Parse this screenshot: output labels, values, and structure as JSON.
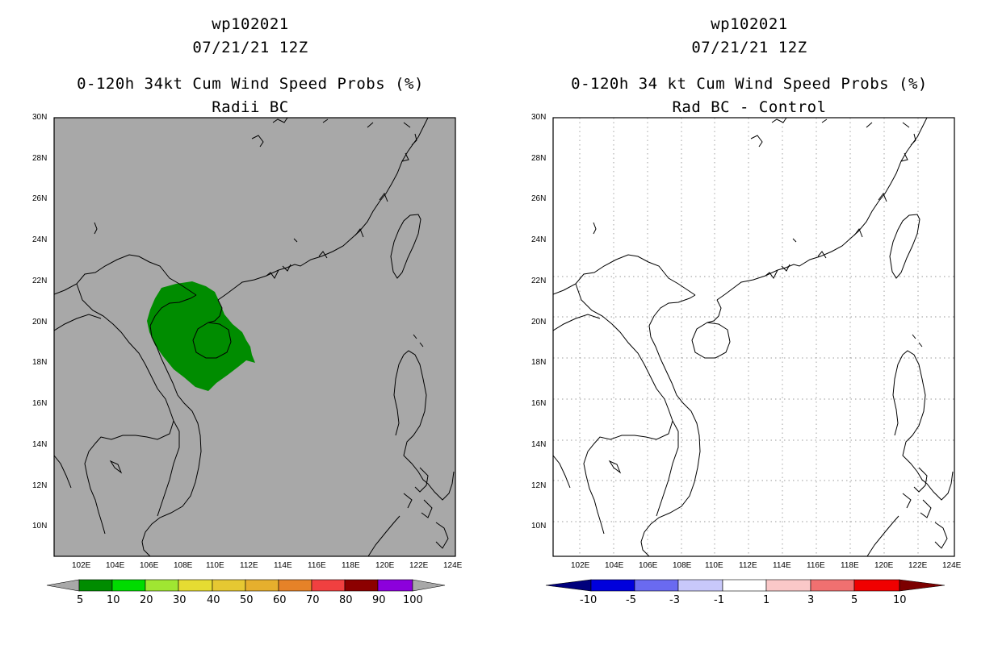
{
  "left_panel": {
    "title_line1": "wp102021",
    "title_line2": "07/21/21 12Z",
    "title_line3": "0-120h 34kt Cum Wind Speed Probs (%)",
    "title_line4": "Radii BC",
    "background_color": "#a8a8a8",
    "colorbar": {
      "labels": [
        "5",
        "10",
        "20",
        "30",
        "40",
        "50",
        "60",
        "70",
        "80",
        "90",
        "100"
      ],
      "colors": [
        "#008c00",
        "#00dc00",
        "#a0e632",
        "#e6dc32",
        "#e6c832",
        "#e6af2d",
        "#e68228",
        "#f04040",
        "#8c0000",
        "#8c00dc"
      ]
    }
  },
  "right_panel": {
    "title_line1": "wp102021",
    "title_line2": "07/21/21 12Z",
    "title_line3": "0-120h 34 kt Cum Wind Speed Probs (%)",
    "title_line4": "Rad BC - Control",
    "colorbar": {
      "labels": [
        "-10",
        "-5",
        "-3",
        "-1",
        "1",
        "3",
        "5",
        "10"
      ],
      "colors": [
        "#0000dc",
        "#6a6af0",
        "#c8c8fa",
        "#ffffff",
        "#fac8c8",
        "#f07070",
        "#f00000"
      ],
      "end_low": "#00007c",
      "end_high": "#7c0000"
    }
  },
  "axes": {
    "lat_labels": [
      "30N",
      "28N",
      "26N",
      "24N",
      "22N",
      "20N",
      "18N",
      "16N",
      "14N",
      "12N",
      "10N"
    ],
    "lon_labels": [
      "102E",
      "104E",
      "106E",
      "108E",
      "110E",
      "112E",
      "114E",
      "116E",
      "118E",
      "120E",
      "122E",
      "124E"
    ]
  }
}
